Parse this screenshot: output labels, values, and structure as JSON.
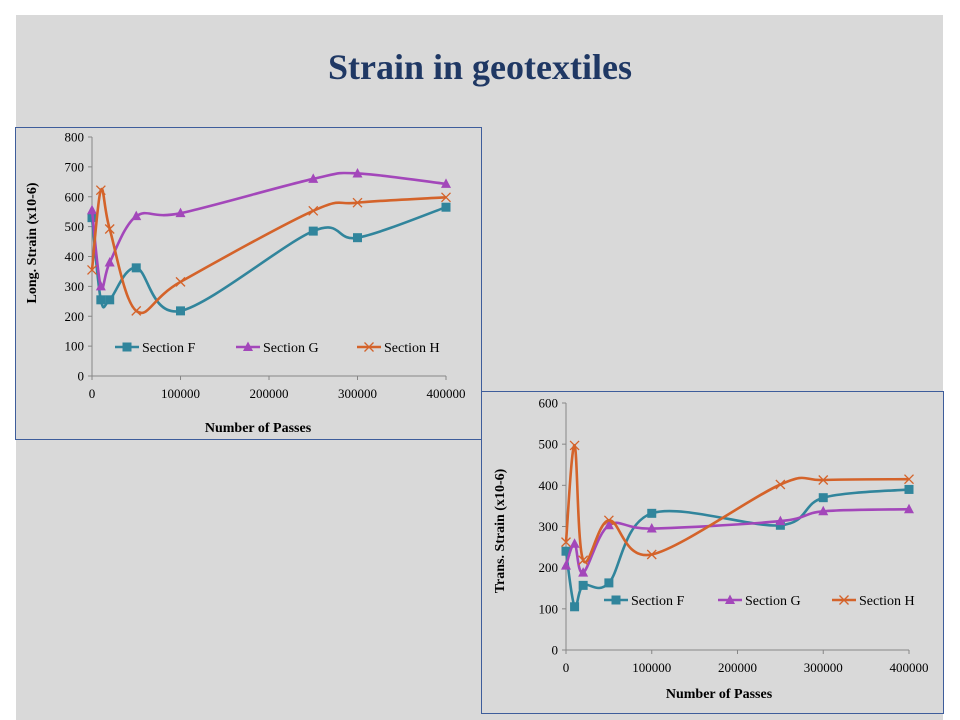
{
  "slide": {
    "title": "Strain in geotextiles"
  },
  "colors": {
    "section_f": "#31859c",
    "section_g": "#a347ba",
    "section_h": "#d4632a",
    "axis": "#868686"
  },
  "chart_data": [
    {
      "type": "line",
      "xlabel": "Number of Passes",
      "ylabel": "Long. Strain (x10-6)",
      "xlim": [
        0,
        400000
      ],
      "ylim": [
        0,
        800
      ],
      "x_ticks": [
        "0",
        "100000",
        "200000",
        "300000",
        "400000"
      ],
      "y_ticks": [
        "0",
        "100",
        "200",
        "300",
        "400",
        "500",
        "600",
        "700",
        "800"
      ],
      "legend_position": "inside-bottom",
      "series": [
        {
          "name": "Section F",
          "marker": "square",
          "x": [
            0,
            10000,
            20000,
            50000,
            100000,
            250000,
            300000,
            400000
          ],
          "y": [
            530,
            255,
            255,
            362,
            218,
            485,
            463,
            565
          ]
        },
        {
          "name": "Section G",
          "marker": "triangle",
          "x": [
            0,
            10000,
            20000,
            50000,
            100000,
            250000,
            300000,
            400000
          ],
          "y": [
            555,
            300,
            380,
            535,
            545,
            660,
            678,
            643
          ]
        },
        {
          "name": "Section H",
          "marker": "x",
          "x": [
            0,
            10000,
            20000,
            50000,
            100000,
            250000,
            300000,
            400000
          ],
          "y": [
            355,
            622,
            492,
            218,
            315,
            553,
            580,
            598
          ]
        }
      ]
    },
    {
      "type": "line",
      "xlabel": "Number of Passes",
      "ylabel": "Trans. Strain (x10-6)",
      "xlim": [
        0,
        400000
      ],
      "ylim": [
        0,
        600
      ],
      "x_ticks": [
        "0",
        "100000",
        "200000",
        "300000",
        "400000"
      ],
      "y_ticks": [
        "0",
        "100",
        "200",
        "300",
        "400",
        "500",
        "600"
      ],
      "legend_position": "inside-bottom",
      "series": [
        {
          "name": "Section F",
          "marker": "square",
          "x": [
            0,
            10000,
            20000,
            50000,
            100000,
            250000,
            300000,
            400000
          ],
          "y": [
            240,
            105,
            157,
            163,
            332,
            303,
            370,
            390
          ]
        },
        {
          "name": "Section G",
          "marker": "triangle",
          "x": [
            0,
            10000,
            20000,
            50000,
            100000,
            250000,
            300000,
            400000
          ],
          "y": [
            205,
            258,
            188,
            303,
            295,
            313,
            337,
            342
          ]
        },
        {
          "name": "Section H",
          "marker": "x",
          "x": [
            0,
            10000,
            20000,
            50000,
            100000,
            250000,
            300000,
            400000
          ],
          "y": [
            262,
            497,
            218,
            315,
            232,
            402,
            413,
            415
          ]
        }
      ]
    }
  ]
}
